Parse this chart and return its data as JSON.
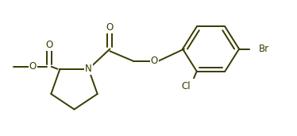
{
  "bg_color": "#ffffff",
  "line_color": "#3a3a00",
  "line_width": 1.4,
  "font_size": 8.5,
  "figsize": [
    3.74,
    1.71
  ],
  "dpi": 100,
  "xlim": [
    0.0,
    10.0
  ],
  "ylim": [
    0.0,
    5.0
  ]
}
